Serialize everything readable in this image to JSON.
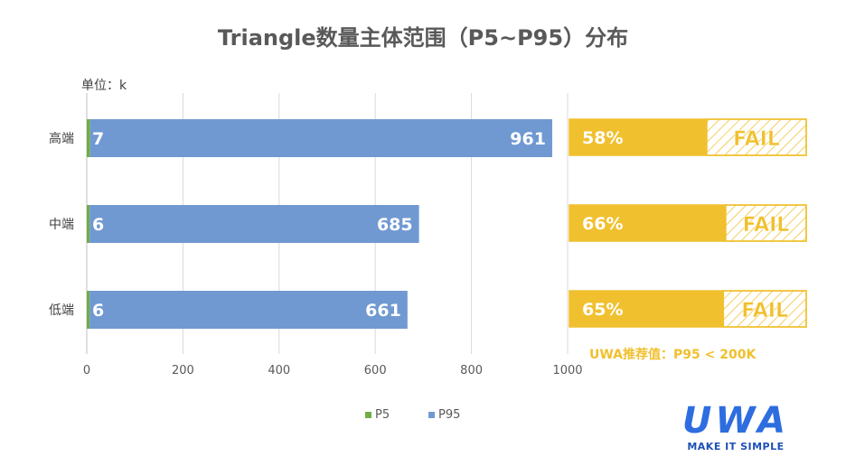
{
  "title": "Triangle数量主体范围（P5~P95）分布",
  "unit_label": "单位：k",
  "recommendation": "UWA推荐值：P95 < 200K",
  "logo": {
    "mark": "UWA",
    "tagline": "MAKE IT SIMPLE"
  },
  "colors": {
    "p5": "#70ad47",
    "p95": "#7099d2",
    "status_bar": "#f0c02e",
    "fail_text": "#f0c02e",
    "grid": "#d9d9d9"
  },
  "chart_data": {
    "type": "bar",
    "orientation": "horizontal",
    "stacked": true,
    "categories": [
      "高端",
      "中端",
      "低端"
    ],
    "series": [
      {
        "name": "P5",
        "values": [
          7,
          6,
          6
        ]
      },
      {
        "name": "P95",
        "values": [
          961,
          685,
          661
        ]
      }
    ],
    "xlim": [
      0,
      1000
    ],
    "xticks": [
      0,
      200,
      400,
      600,
      800,
      1000
    ],
    "grid": true,
    "legend": "bottom",
    "status": [
      {
        "percent": 58,
        "label": "58%",
        "result": "FAIL"
      },
      {
        "percent": 66,
        "label": "66%",
        "result": "FAIL"
      },
      {
        "percent": 65,
        "label": "65%",
        "result": "FAIL"
      }
    ]
  }
}
